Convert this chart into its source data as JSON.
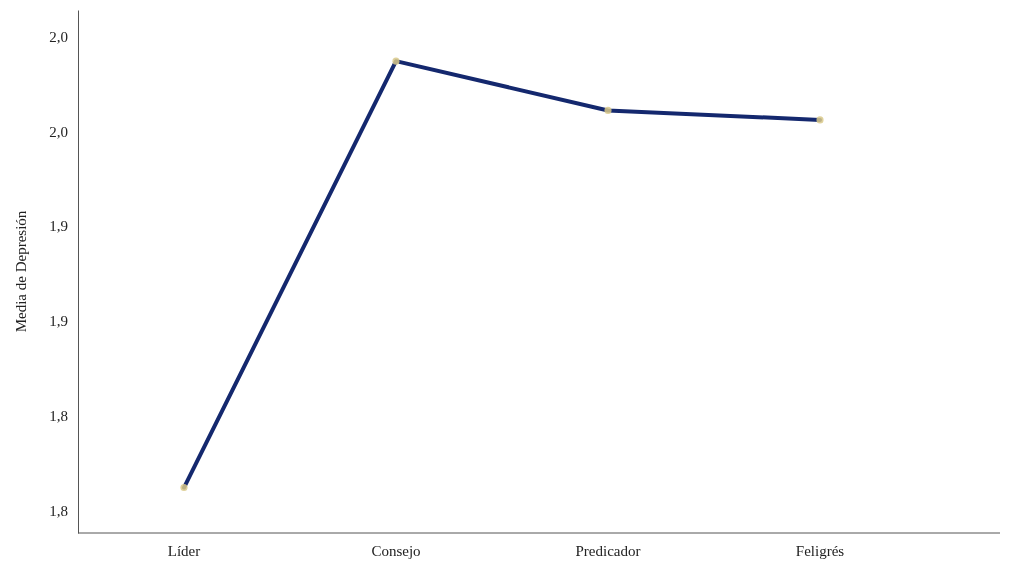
{
  "chart_data": {
    "type": "line",
    "ylabel": "Media de Depresión",
    "categories": [
      "Líder",
      "Consejo",
      "Predicador",
      "Feligrés"
    ],
    "series": [
      {
        "color": "#14286e",
        "values": [
          1.787,
          2.012,
          1.986,
          1.981
        ]
      }
    ],
    "ylim": [
      1.763,
      2.039
    ],
    "yticks": [
      {
        "value": 1.775,
        "label": "1,8"
      },
      {
        "value": 1.825,
        "label": "1,8"
      },
      {
        "value": 1.875,
        "label": "1,9"
      },
      {
        "value": 1.925,
        "label": "1,9"
      },
      {
        "value": 1.975,
        "label": "2,0"
      },
      {
        "value": 2.025,
        "label": "2,0"
      }
    ],
    "marker": "circle",
    "grid": false
  }
}
